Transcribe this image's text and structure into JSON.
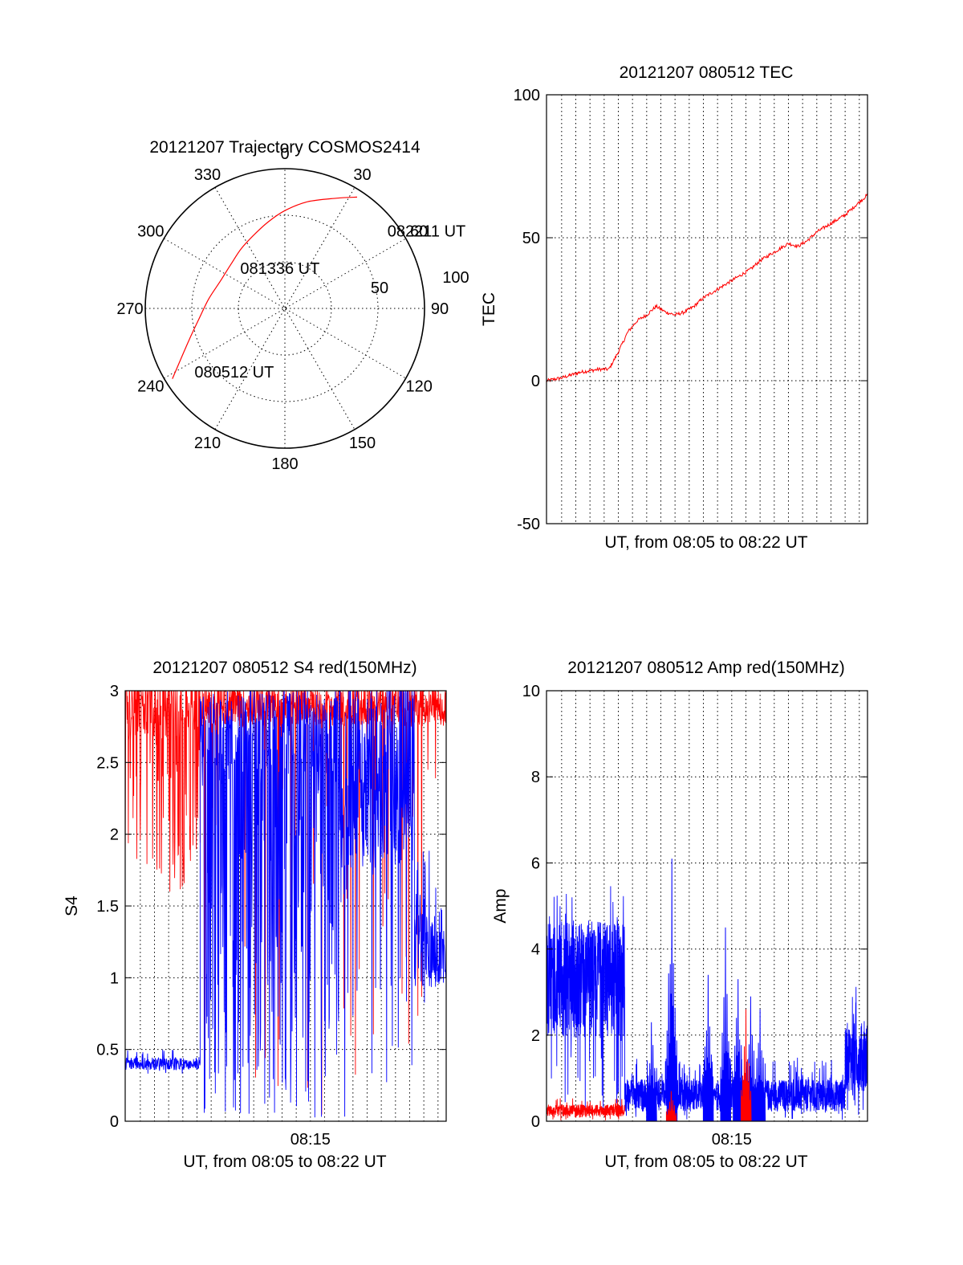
{
  "colors": {
    "red": "#ff0000",
    "blue": "#0000ff",
    "axis": "#000000",
    "background": "#ffffff"
  },
  "chart_data": [
    {
      "id": "trajectory",
      "type": "polar",
      "title": "20121207 Trajectory COSMOS2414",
      "azimuth_labels": [
        "0",
        "30",
        "60",
        "90",
        "120",
        "150",
        "180",
        "210",
        "240",
        "270",
        "300",
        "330"
      ],
      "radial_ticks": [
        "50",
        "100"
      ],
      "rlim": [
        0,
        100
      ],
      "grid": true,
      "series": [
        {
          "color": "red",
          "points": [
            {
              "azimuth": 238,
              "radius": 95
            },
            {
              "azimuth": 244,
              "radius": 83
            },
            {
              "azimuth": 252,
              "radius": 72
            },
            {
              "azimuth": 263,
              "radius": 62
            },
            {
              "azimuth": 277,
              "radius": 55
            },
            {
              "azimuth": 294,
              "radius": 50
            },
            {
              "azimuth": 310,
              "radius": 50
            },
            {
              "azimuth": 324,
              "radius": 53
            },
            {
              "azimuth": 337,
              "radius": 57
            },
            {
              "azimuth": 349,
              "radius": 63
            },
            {
              "azimuth": 0,
              "radius": 70
            },
            {
              "azimuth": 12,
              "radius": 78
            },
            {
              "azimuth": 25,
              "radius": 87
            },
            {
              "azimuth": 33,
              "radius": 95
            }
          ]
        }
      ],
      "annotations": [
        {
          "text": "080512 UT",
          "azimuth": 235,
          "radius": 79
        },
        {
          "text": "081336 UT",
          "azimuth": 312,
          "radius": 43
        },
        {
          "text": "082211 UT",
          "azimuth": 53,
          "radius": 92
        }
      ]
    },
    {
      "id": "tec",
      "type": "line",
      "title": "20121207 080512 TEC",
      "ylabel": "TEC",
      "xlabel": "UT, from 08:05 to 08:22 UT",
      "ylim": [
        -50,
        100
      ],
      "yticks": [
        "100",
        "50",
        "0",
        "-50"
      ],
      "xlim": [
        "08:05:12",
        "08:22:11"
      ],
      "grid": true,
      "series": [
        {
          "color": "red",
          "noise": 0.6,
          "x": [
            "08:05:12",
            "08:06:00",
            "08:07:00",
            "08:08:00",
            "08:08:30",
            "08:09:00",
            "08:09:30",
            "08:10:00",
            "08:10:30",
            "08:11:00",
            "08:11:30",
            "08:12:00",
            "08:12:30",
            "08:13:00",
            "08:13:30",
            "08:14:00",
            "08:14:30",
            "08:15:00",
            "08:15:30",
            "08:16:00",
            "08:16:30",
            "08:17:00",
            "08:17:30",
            "08:18:00",
            "08:18:30",
            "08:19:00",
            "08:19:30",
            "08:20:00",
            "08:20:30",
            "08:21:00",
            "08:21:30",
            "08:22:11"
          ],
          "values": [
            0,
            1,
            3,
            4,
            4,
            10,
            17,
            21,
            23,
            26,
            24,
            23,
            24,
            26,
            29,
            31,
            33,
            35,
            37,
            39,
            42,
            44,
            46,
            48,
            47,
            49,
            52,
            54,
            56,
            58,
            61,
            65
          ]
        }
      ]
    },
    {
      "id": "s4",
      "type": "line",
      "title": "20121207 080512 S4 red(150MHz)",
      "ylabel": "S4",
      "xlabel": "UT, from 08:05 to 08:22 UT",
      "xtick": "08:15",
      "ylim": [
        0,
        3
      ],
      "yticks": [
        "3",
        "2.5",
        "2",
        "1.5",
        "1",
        "0.5",
        "0"
      ],
      "xlim": [
        "08:05:12",
        "08:22:11"
      ],
      "grid": true,
      "series": [
        {
          "color": "red",
          "segments": [
            {
              "x": [
                "08:05:12",
                "08:09:10"
              ],
              "low": 1.6,
              "high": 3.0,
              "baseline": 2.8,
              "spikes": "down"
            },
            {
              "x": [
                "08:09:10",
                "08:22:11"
              ],
              "low": 0.0,
              "high": 3.0,
              "baseline": 2.9,
              "spikes": "down",
              "sparse": true
            }
          ]
        },
        {
          "color": "blue",
          "segments": [
            {
              "x": [
                "08:05:12",
                "08:09:10"
              ],
              "low": 0.33,
              "high": 0.5,
              "baseline": 0.4
            },
            {
              "x": [
                "08:09:10",
                "08:16:30"
              ],
              "low": 0.0,
              "high": 3.0,
              "baseline": 2.6,
              "dense": true
            },
            {
              "x": [
                "08:16:30",
                "08:20:30"
              ],
              "low": 0.0,
              "high": 3.0,
              "baseline": 2.5
            },
            {
              "x": [
                "08:20:30",
                "08:22:11"
              ],
              "low": 0.8,
              "high": 1.9,
              "baseline": 1.2
            }
          ]
        }
      ]
    },
    {
      "id": "amp",
      "type": "line",
      "title": "20121207 080512 Amp red(150MHz)",
      "ylabel": "Amp",
      "xlabel": "UT, from 08:05 to 08:22 UT",
      "xtick": "08:15",
      "ylim": [
        0,
        10
      ],
      "yticks": [
        "10",
        "8",
        "6",
        "4",
        "2",
        "0"
      ],
      "xlim": [
        "08:05:12",
        "08:22:11"
      ],
      "grid": true,
      "series": [
        {
          "color": "blue",
          "segments": [
            {
              "x": [
                "08:05:12",
                "08:09:20"
              ],
              "low": 0.0,
              "high": 5.5,
              "baseline": 3.3
            },
            {
              "x": [
                "08:09:20",
                "08:21:00"
              ],
              "low": 0.0,
              "high": 1.5,
              "baseline": 0.6
            },
            {
              "x": [
                "08:21:00",
                "08:22:11"
              ],
              "low": 0.0,
              "high": 3.2,
              "baseline": 1.5
            }
          ],
          "peaks": [
            {
              "x": "08:10:45",
              "value": 2.3
            },
            {
              "x": "08:11:50",
              "value": 6.1
            },
            {
              "x": "08:13:45",
              "value": 3.4
            },
            {
              "x": "08:14:40",
              "value": 4.5
            },
            {
              "x": "08:15:20",
              "value": 3.3
            },
            {
              "x": "08:16:00",
              "value": 2.9
            },
            {
              "x": "08:16:30",
              "value": 2.6
            }
          ]
        },
        {
          "color": "red",
          "segments": [
            {
              "x": [
                "08:05:12",
                "08:09:20"
              ],
              "low": 0.0,
              "high": 0.55,
              "baseline": 0.25
            }
          ],
          "peaks": [
            {
              "x": "08:11:48",
              "value": 0.7
            },
            {
              "x": "08:15:45",
              "value": 2.6
            }
          ]
        }
      ]
    }
  ]
}
